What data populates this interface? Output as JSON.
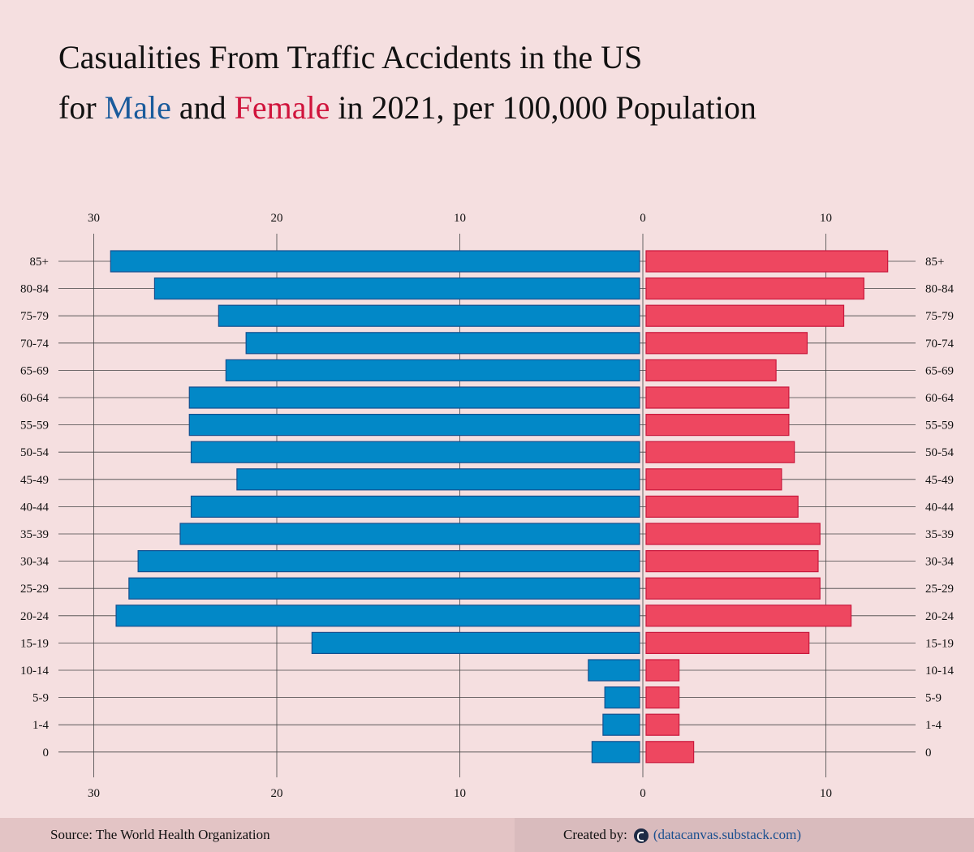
{
  "title": {
    "line1": "Casualities From Traffic Accidents in the US",
    "line2_pre": "for ",
    "line2_male": "Male",
    "line2_mid": " and ",
    "line2_female": "Female",
    "line2_post": " in 2021, per 100,000 Population"
  },
  "chart_data": {
    "type": "bar",
    "orientation": "horizontal-diverging",
    "categories": [
      "85+",
      "80-84",
      "75-79",
      "70-74",
      "65-69",
      "60-64",
      "55-59",
      "50-54",
      "45-49",
      "40-44",
      "35-39",
      "30-34",
      "25-29",
      "20-24",
      "15-19",
      "10-14",
      "5-9",
      "1-4",
      "0"
    ],
    "series": [
      {
        "name": "Male",
        "color": "#0288c7",
        "stroke": "#15508f",
        "values": [
          28.9,
          26.5,
          23.0,
          21.5,
          22.6,
          24.6,
          24.6,
          24.5,
          22.0,
          24.5,
          25.1,
          27.4,
          27.9,
          28.6,
          17.9,
          2.8,
          1.9,
          2.0,
          2.6
        ]
      },
      {
        "name": "Female",
        "color": "#ee4760",
        "stroke": "#c9183c",
        "values": [
          13.2,
          11.9,
          10.8,
          8.8,
          7.1,
          7.8,
          7.8,
          8.1,
          7.4,
          8.3,
          9.5,
          9.4,
          9.5,
          11.2,
          8.9,
          1.8,
          1.8,
          1.8,
          2.6
        ]
      }
    ],
    "xlim_male": [
      0,
      30
    ],
    "xlim_female": [
      0,
      10
    ],
    "ticks_male": [
      30,
      20,
      10,
      0
    ],
    "ticks_female": [
      10
    ],
    "grid": true
  },
  "footer": {
    "source": "Source: The World Health Organization",
    "created_by": "Created by:",
    "logo_icon": "datacanvas-logo-icon",
    "link": "(datacanvas.substack.com)"
  }
}
